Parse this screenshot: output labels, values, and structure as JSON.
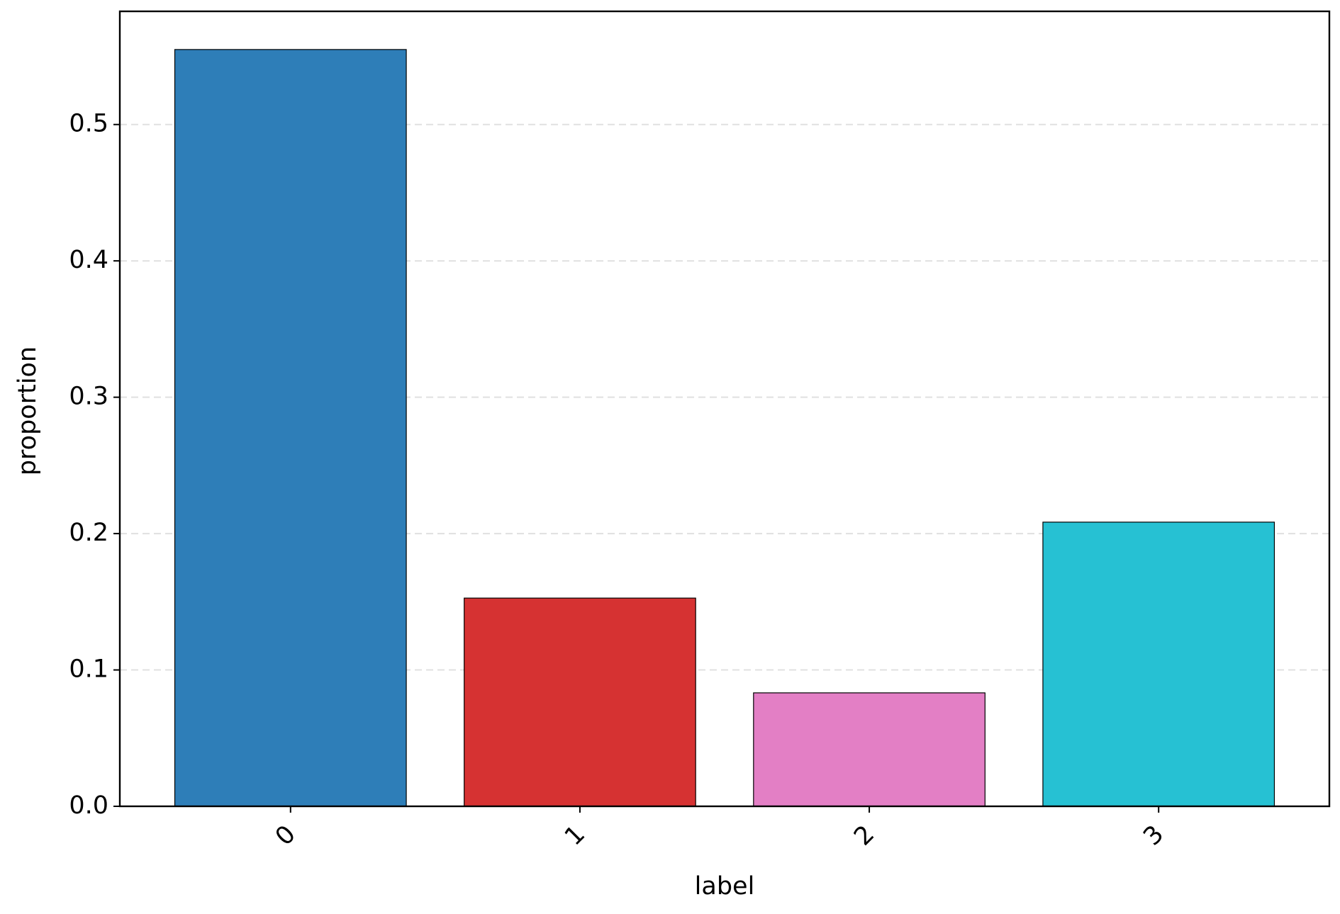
{
  "chart_data": {
    "type": "bar",
    "x_label": "label",
    "y_label": "proportion",
    "categories": [
      "0",
      "1",
      "2",
      "3"
    ],
    "values": [
      0.555,
      0.1527,
      0.0832,
      0.2084
    ],
    "colors": [
      "#2e7eb8",
      "#d63232",
      "#e37fc5",
      "#26c1d3"
    ],
    "ylim": [
      0,
      0.583
    ],
    "yticks": [
      {
        "value": 0,
        "label": "0.0"
      },
      0.1,
      0.2,
      0.3,
      0.4,
      0.5
    ],
    "grid": true
  }
}
